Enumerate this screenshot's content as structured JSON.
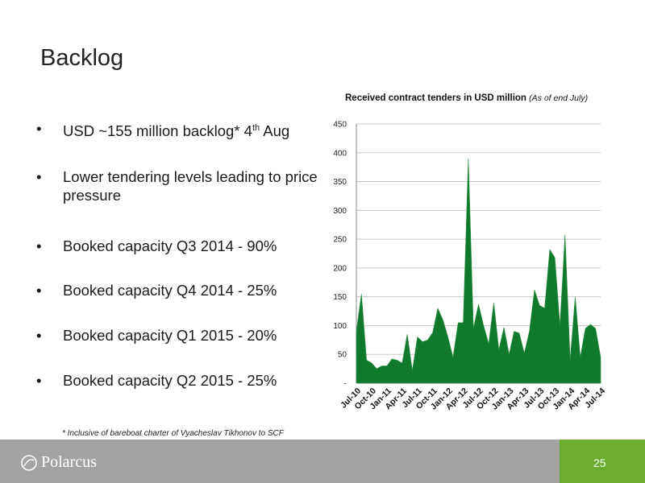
{
  "slide": {
    "title": "Backlog",
    "bullets": [
      {
        "text": "USD ~155 million backlog* 4",
        "sup": "th",
        "tail": " Aug"
      },
      {
        "text": "Lower tendering levels leading to price pressure"
      },
      {
        "text": "Booked capacity Q3 2014 - 90%"
      },
      {
        "text": "Booked capacity Q4 2014 - 25%"
      },
      {
        "text": "Booked capacity Q1 2015 - 20%"
      },
      {
        "text": "Booked capacity Q2 2015 - 25%"
      }
    ],
    "footnote": "* Inclusive of bareboat charter of Vyacheslav Tikhonov to SCF",
    "page_number": "25",
    "logo_text": "Polarcus",
    "colors": {
      "accent": "#6aad2f",
      "footer": "#a3a3a3",
      "series": "#0f7a2d"
    }
  },
  "chart_title": {
    "main": "Received contract tenders in USD million",
    "note": "(As of end July)"
  },
  "chart_data": {
    "type": "area",
    "y_tick_labels": [
      "-",
      "50",
      "100",
      "150",
      "200",
      "250",
      "300",
      "350",
      "400",
      "450"
    ],
    "ylim": [
      0,
      450
    ],
    "y_ticks": [
      0,
      50,
      100,
      150,
      200,
      250,
      300,
      350,
      400,
      450
    ],
    "x_tick_labels": [
      "Jul-10",
      "Oct-10",
      "Jan-11",
      "Apr-11",
      "Jul-11",
      "Oct-11",
      "Jan-12",
      "Apr-12",
      "Jul-12",
      "Oct-12",
      "Jan-13",
      "Apr-13",
      "Jul-13",
      "Oct-13",
      "Jan-14",
      "Apr-14",
      "Jul-14"
    ],
    "grid": true,
    "x": [
      "Jul-10",
      "Aug-10",
      "Sep-10",
      "Oct-10",
      "Nov-10",
      "Dec-10",
      "Jan-11",
      "Feb-11",
      "Mar-11",
      "Apr-11",
      "May-11",
      "Jun-11",
      "Jul-11",
      "Aug-11",
      "Sep-11",
      "Oct-11",
      "Nov-11",
      "Dec-11",
      "Jan-12",
      "Feb-12",
      "Mar-12",
      "Apr-12",
      "May-12",
      "Jun-12",
      "Jul-12",
      "Aug-12",
      "Sep-12",
      "Oct-12",
      "Nov-12",
      "Dec-12",
      "Jan-13",
      "Feb-13",
      "Mar-13",
      "Apr-13",
      "May-13",
      "Jun-13",
      "Jul-13",
      "Aug-13",
      "Sep-13",
      "Oct-13",
      "Nov-13",
      "Dec-13",
      "Jan-14",
      "Feb-14",
      "Mar-14",
      "Apr-14",
      "May-14",
      "Jun-14",
      "Jul-14"
    ],
    "values": [
      90,
      155,
      40,
      35,
      25,
      30,
      30,
      42,
      40,
      35,
      85,
      22,
      80,
      72,
      75,
      88,
      130,
      110,
      80,
      45,
      105,
      105,
      390,
      95,
      137,
      100,
      68,
      140,
      58,
      97,
      50,
      90,
      87,
      52,
      90,
      162,
      135,
      130,
      232,
      218,
      100,
      258,
      40,
      150,
      45,
      95,
      102,
      95,
      45
    ]
  }
}
